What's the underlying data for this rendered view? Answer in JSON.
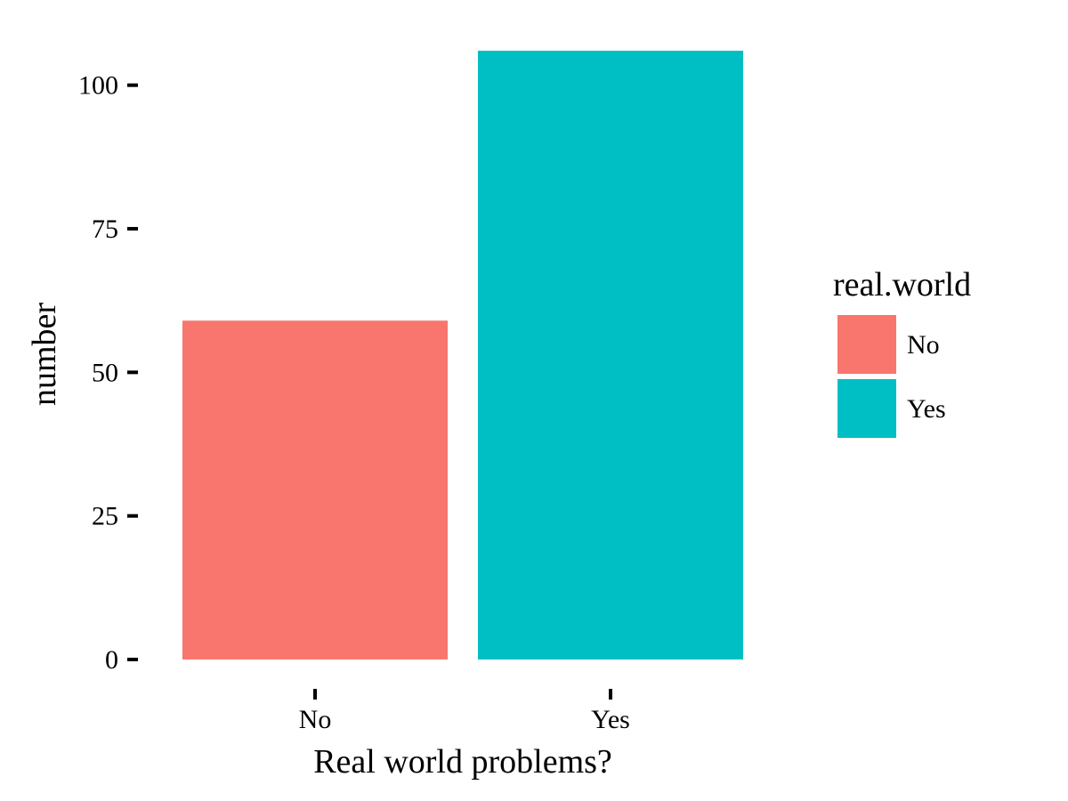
{
  "chart_data": {
    "type": "bar",
    "categories": [
      "No",
      "Yes"
    ],
    "values": [
      59,
      106
    ],
    "colors": [
      "#F8766D",
      "#00BFC4"
    ],
    "xlabel": "Real world problems?",
    "ylabel": "number",
    "ylim": [
      0,
      106
    ],
    "y_ticks": [
      0,
      25,
      50,
      75,
      100
    ],
    "grid": false,
    "legend": {
      "title": "real.world",
      "placement": "right",
      "items": [
        {
          "label": "No",
          "color": "#F8766D"
        },
        {
          "label": "Yes",
          "color": "#00BFC4"
        }
      ]
    }
  }
}
